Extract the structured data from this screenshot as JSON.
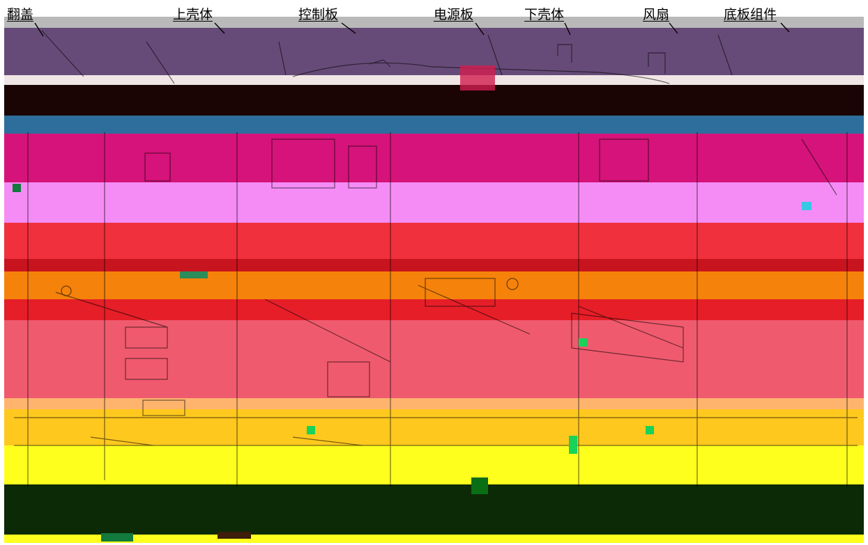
{
  "figure": {
    "part_labels": [
      "翻盖",
      "上壳体",
      "控制板",
      "电源板",
      "下壳体",
      "风扇",
      "底板组件"
    ],
    "colors": {
      "top_gray": "#b9b9b9",
      "lid_purple": "#664b78",
      "dark_band": "#1a0404",
      "blue_band": "#2d6e9c",
      "magenta_band": "#d6137a",
      "pink_band": "#f58cf5",
      "red_band": "#f0303c",
      "orange_band": "#f5820a",
      "coral_band": "#f05a6e",
      "yellow_orange_band": "#ffc81e",
      "yellow_band": "#ffff1e",
      "green_band": "#0c2a06",
      "line_color": "#000000"
    }
  }
}
